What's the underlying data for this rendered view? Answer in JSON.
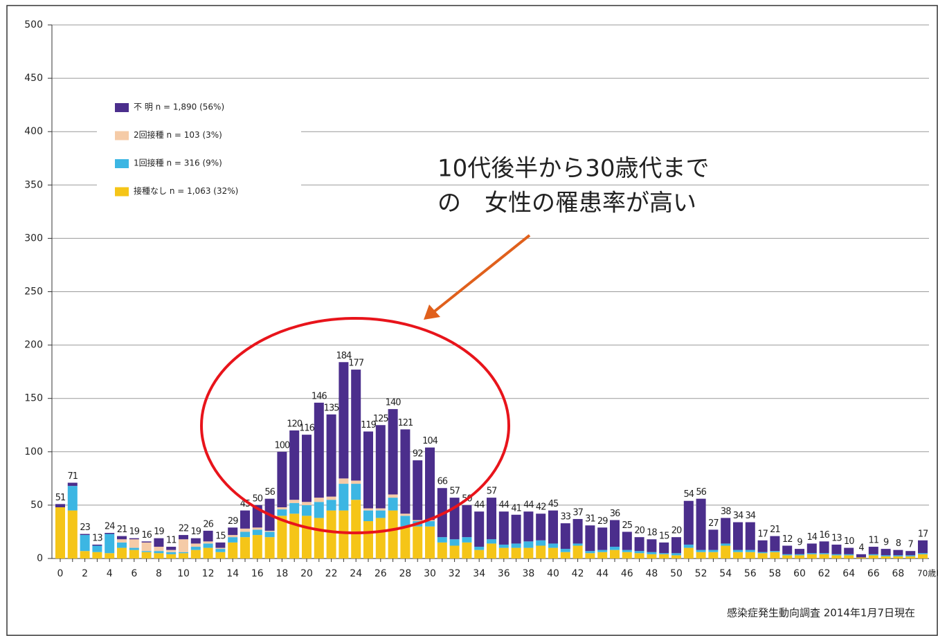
{
  "chart_data": {
    "type": "stacked-bar",
    "categories": [
      "0",
      null,
      "2",
      null,
      "4",
      null,
      "6",
      null,
      "8",
      null,
      "10",
      null,
      "12",
      null,
      "14",
      null,
      "16",
      null,
      "18",
      null,
      "20",
      null,
      "22",
      null,
      "24",
      null,
      "26",
      null,
      "28",
      null,
      "30",
      null,
      "32",
      null,
      "34",
      null,
      "36",
      null,
      "38",
      null,
      "40",
      null,
      "42",
      null,
      "44",
      null,
      "46",
      null,
      "48",
      null,
      "50",
      null,
      "52",
      null,
      "54",
      null,
      "56",
      null,
      "58",
      null,
      "60",
      null,
      "62",
      null,
      "64",
      null,
      "66",
      null,
      "68",
      null,
      "70歳以上"
    ],
    "series": [
      {
        "name": "接種なし n = 1,063 (32%)",
        "color": "#f5c518",
        "values": [
          48,
          45,
          7,
          6,
          5,
          10,
          8,
          6,
          5,
          4,
          5,
          8,
          10,
          6,
          15,
          20,
          22,
          20,
          40,
          42,
          40,
          38,
          45,
          45,
          55,
          35,
          38,
          45,
          30,
          30,
          30,
          15,
          12,
          15,
          8,
          14,
          10,
          10,
          10,
          12,
          10,
          6,
          12,
          5,
          6,
          8,
          6,
          5,
          4,
          4,
          3,
          10,
          6,
          6,
          12,
          6,
          6,
          5,
          6,
          3,
          3,
          4,
          4,
          3,
          3,
          1,
          3,
          2,
          2,
          2,
          4
        ]
      },
      {
        "name": "1回接種 n = 316 (9%)",
        "color": "#3cb6e3",
        "values": [
          0,
          23,
          15,
          6,
          18,
          5,
          2,
          1,
          2,
          2,
          1,
          3,
          4,
          3,
          5,
          5,
          5,
          5,
          6,
          10,
          10,
          15,
          10,
          25,
          15,
          10,
          7,
          12,
          10,
          5,
          5,
          5,
          6,
          5,
          3,
          4,
          3,
          4,
          6,
          5,
          4,
          3,
          2,
          2,
          2,
          3,
          2,
          2,
          2,
          1,
          2,
          3,
          2,
          2,
          2,
          2,
          2,
          1,
          1,
          1,
          1,
          1,
          1,
          1,
          1,
          0,
          1,
          1,
          1,
          1,
          1
        ]
      },
      {
        "name": "2回接種 n = 103 (3%)",
        "color": "#f5cba7",
        "values": [
          0,
          0,
          0,
          0,
          0,
          3,
          8,
          8,
          4,
          2,
          12,
          3,
          2,
          1,
          2,
          3,
          2,
          1,
          2,
          3,
          3,
          4,
          3,
          5,
          3,
          2,
          2,
          3,
          2,
          1,
          1,
          0,
          0,
          0,
          0,
          0,
          0,
          0,
          0,
          0,
          0,
          0,
          0,
          0,
          0,
          0,
          0,
          0,
          0,
          0,
          0,
          0,
          0,
          0,
          0,
          0,
          0,
          0,
          0,
          0,
          0,
          0,
          0,
          0,
          0,
          0,
          0,
          0,
          0,
          0,
          0
        ]
      },
      {
        "name": "不 明 n = 1,890 (56%)",
        "color": "#4b2e8c",
        "values": [
          3,
          3,
          1,
          1,
          1,
          3,
          1,
          1,
          8,
          3,
          4,
          5,
          10,
          5,
          7,
          17,
          21,
          30,
          52,
          65,
          63,
          89,
          77,
          109,
          104,
          72,
          78,
          80,
          79,
          56,
          68,
          46,
          39,
          30,
          33,
          39,
          31,
          27,
          28,
          25,
          31,
          24,
          23,
          24,
          21,
          25,
          17,
          13,
          12,
          10,
          15,
          41,
          48,
          19,
          24,
          26,
          26,
          11,
          14,
          8,
          5,
          9,
          11,
          9,
          6,
          3,
          7,
          6,
          5,
          4,
          12
        ]
      }
    ],
    "totals": [
      51,
      71,
      23,
      13,
      24,
      21,
      19,
      16,
      19,
      11,
      22,
      19,
      26,
      15,
      29,
      45,
      50,
      56,
      100,
      120,
      116,
      146,
      135,
      184,
      177,
      119,
      125,
      140,
      121,
      92,
      104,
      66,
      57,
      50,
      44,
      57,
      44,
      41,
      44,
      42,
      45,
      33,
      37,
      31,
      29,
      36,
      25,
      20,
      18,
      15,
      20,
      54,
      56,
      27,
      38,
      34,
      34,
      17,
      21,
      12,
      9,
      14,
      16,
      13,
      10,
      4,
      11,
      9,
      8,
      7,
      17
    ],
    "ylim": [
      0,
      500
    ],
    "yticks": [
      0,
      50,
      100,
      150,
      200,
      250,
      300,
      350,
      400,
      450,
      500
    ],
    "grid": true,
    "annotation": [
      "10代後半から30歳代まで",
      "の　女性の罹患率が高い"
    ],
    "source": "感染症発生動向調査 2014年1月7日現在"
  }
}
